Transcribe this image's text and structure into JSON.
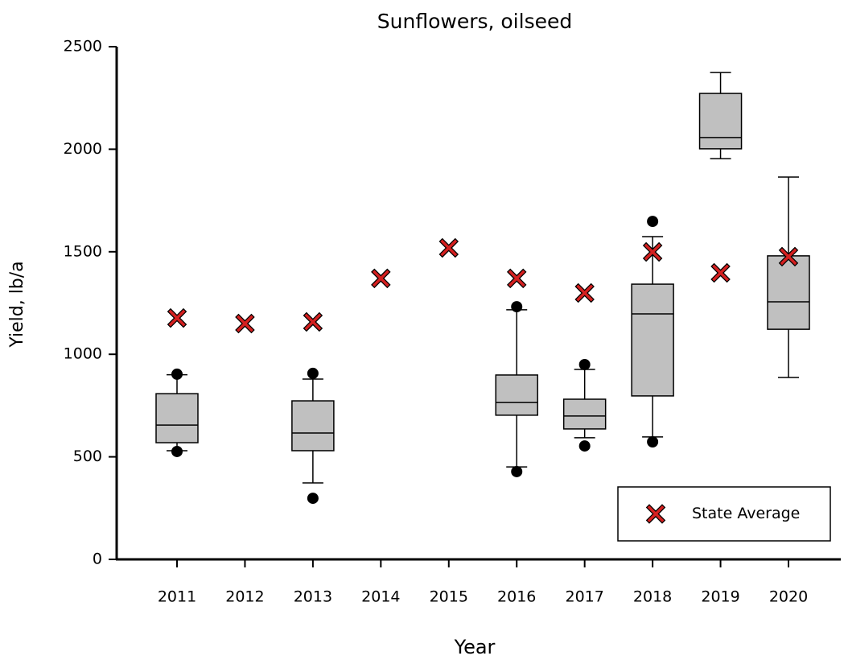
{
  "chart_data": {
    "type": "box",
    "title": "Sunflowers, oilseed",
    "xlabel": "Year",
    "ylabel": "Yield, lb/a",
    "categories": [
      "2011",
      "2012",
      "2013",
      "2014",
      "2015",
      "2016",
      "2017",
      "2018",
      "2019",
      "2020"
    ],
    "box_color": "#c0c0c0",
    "boxes": [
      {
        "min": 530,
        "q1": 569,
        "median": 655,
        "q3": 808,
        "max": 900,
        "outliers": [
          526,
          903
        ]
      },
      null,
      {
        "min": 373,
        "q1": 530,
        "median": 616,
        "q3": 773,
        "max": 879,
        "outliers": [
          298,
          907
        ]
      },
      null,
      null,
      {
        "min": 451,
        "q1": 703,
        "median": 765,
        "q3": 899,
        "max": 1217,
        "outliers": [
          428,
          1232
        ]
      },
      {
        "min": 593,
        "q1": 636,
        "median": 699,
        "q3": 781,
        "max": 926,
        "outliers": [
          553,
          950
        ]
      },
      {
        "min": 597,
        "q1": 797,
        "median": 1197,
        "q3": 1342,
        "max": 1574,
        "outliers": [
          573,
          1648
        ]
      },
      {
        "min": 1954,
        "q1": 2002,
        "median": 2057,
        "q3": 2272,
        "max": 2374,
        "outliers": []
      },
      {
        "min": 887,
        "q1": 1122,
        "median": 1256,
        "q3": 1480,
        "max": 1864,
        "outliers": []
      }
    ],
    "series": [
      {
        "name": "State Average",
        "color": "#d42020",
        "values": [
          1177,
          1150,
          1158,
          1370,
          1519,
          1370,
          1299,
          1499,
          1397,
          1476
        ]
      }
    ],
    "ylim": [
      0,
      2500
    ],
    "yticks": [
      0,
      500,
      1000,
      1500,
      2000,
      2500
    ],
    "legend": "lower right"
  }
}
